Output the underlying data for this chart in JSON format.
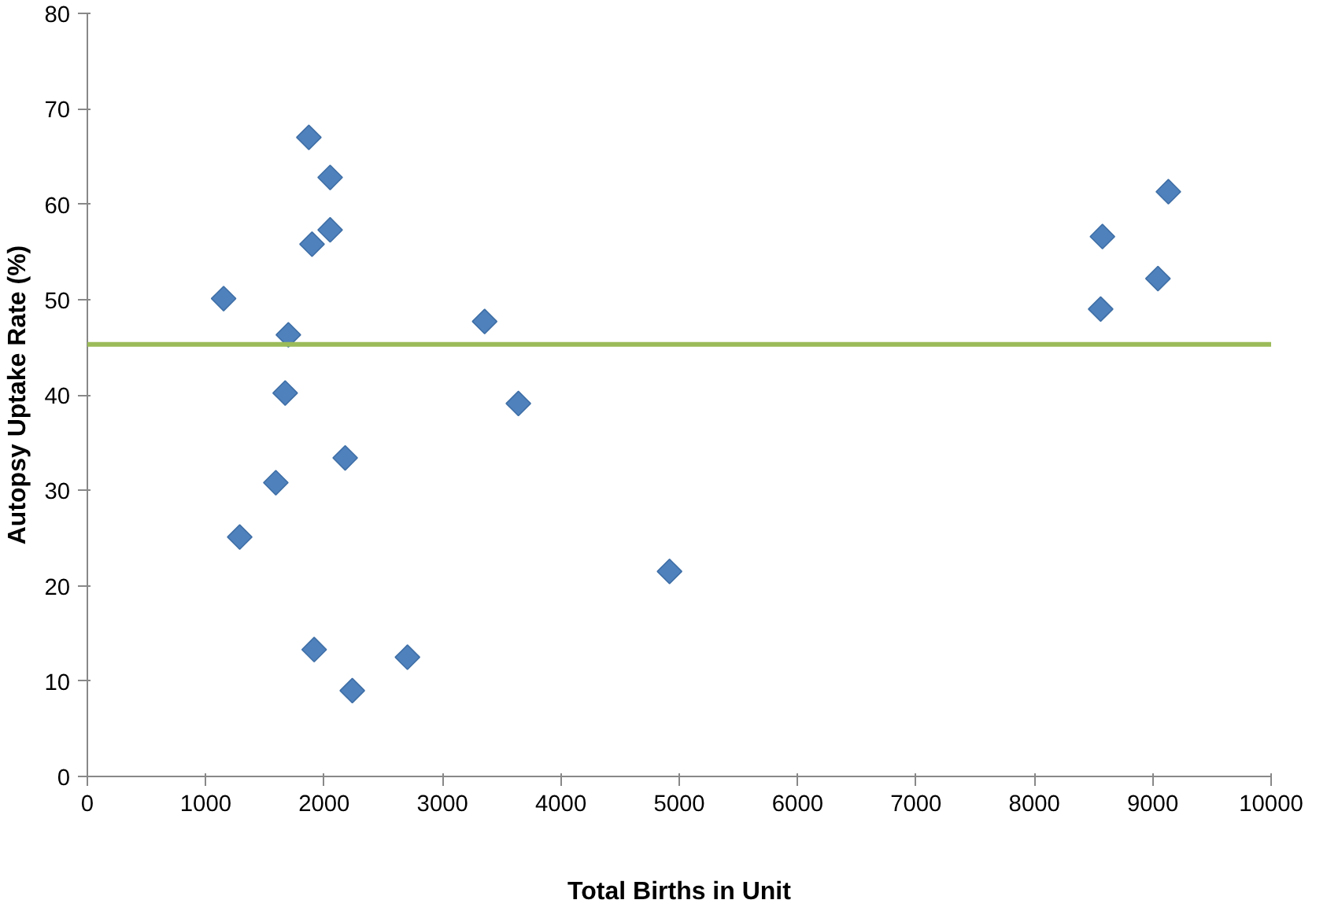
{
  "chart_data": {
    "type": "scatter",
    "xlabel": "Total Births in Unit",
    "ylabel": "Autopsy Uptake Rate (%)",
    "xlim": [
      0,
      10000
    ],
    "xticks": [
      0,
      1000,
      2000,
      3000,
      4000,
      5000,
      6000,
      7000,
      8000,
      9000,
      10000
    ],
    "ylim": [
      0,
      80
    ],
    "yticks": [
      0,
      10,
      20,
      30,
      40,
      50,
      60,
      70,
      80
    ],
    "grid": false,
    "marker": "diamond",
    "series": [
      {
        "color": "#4f81bd",
        "x": [
          1871,
          2051,
          2051,
          1898,
          1151,
          1698,
          1671,
          3356,
          3641,
          2178,
          1592,
          1287,
          1916,
          2704,
          2238,
          4918,
          8560,
          9044,
          8575,
          9132
        ],
        "values": [
          67.0,
          62.8,
          57.3,
          55.8,
          50.1,
          46.3,
          40.2,
          47.7,
          39.1,
          33.4,
          30.8,
          25.1,
          13.3,
          12.5,
          9.0,
          21.5,
          49.0,
          52.2,
          56.6,
          61.3
        ]
      }
    ],
    "ref_lines": [
      {
        "axis": "y",
        "value": 45.3,
        "color": "#9bbb59"
      }
    ]
  }
}
